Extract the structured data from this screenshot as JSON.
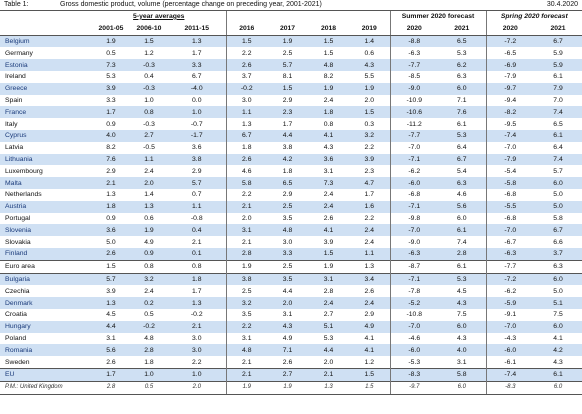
{
  "header": {
    "table_label": "Table 1:",
    "title": "Gross domestic product, volume (percentage change on preceding year, 2001-2021)",
    "date": "30.4.2020"
  },
  "table": {
    "group_headers": [
      "5-year averages",
      "Summer 2020 forecast",
      "Spring 2020 forecast"
    ],
    "columns": [
      "2001-05",
      "2006-10",
      "2011-15",
      "2016",
      "2017",
      "2018",
      "2019",
      "2020",
      "2021",
      "2020",
      "2021"
    ],
    "rows": [
      [
        "Belgium",
        "1.9",
        "1.5",
        "1.3",
        "1.5",
        "1.9",
        "1.5",
        "1.4",
        "-8.8",
        "6.5",
        "-7.2",
        "6.7"
      ],
      [
        "Germany",
        "0.5",
        "1.2",
        "1.7",
        "2.2",
        "2.5",
        "1.5",
        "0.6",
        "-6.3",
        "5.3",
        "-6.5",
        "5.9"
      ],
      [
        "Estonia",
        "7.3",
        "-0.3",
        "3.3",
        "2.6",
        "5.7",
        "4.8",
        "4.3",
        "-7.7",
        "6.2",
        "-6.9",
        "5.9"
      ],
      [
        "Ireland",
        "5.3",
        "0.4",
        "6.7",
        "3.7",
        "8.1",
        "8.2",
        "5.5",
        "-8.5",
        "6.3",
        "-7.9",
        "6.1"
      ],
      [
        "Greece",
        "3.9",
        "-0.3",
        "-4.0",
        "-0.2",
        "1.5",
        "1.9",
        "1.9",
        "-9.0",
        "6.0",
        "-9.7",
        "7.9"
      ],
      [
        "Spain",
        "3.3",
        "1.0",
        "0.0",
        "3.0",
        "2.9",
        "2.4",
        "2.0",
        "-10.9",
        "7.1",
        "-9.4",
        "7.0"
      ],
      [
        "France",
        "1.7",
        "0.8",
        "1.0",
        "1.1",
        "2.3",
        "1.8",
        "1.5",
        "-10.6",
        "7.6",
        "-8.2",
        "7.4"
      ],
      [
        "Italy",
        "0.9",
        "-0.3",
        "-0.7",
        "1.3",
        "1.7",
        "0.8",
        "0.3",
        "-11.2",
        "6.1",
        "-9.5",
        "6.5"
      ],
      [
        "Cyprus",
        "4.0",
        "2.7",
        "-1.7",
        "6.7",
        "4.4",
        "4.1",
        "3.2",
        "-7.7",
        "5.3",
        "-7.4",
        "6.1"
      ],
      [
        "Latvia",
        "8.2",
        "-0.5",
        "3.6",
        "1.8",
        "3.8",
        "4.3",
        "2.2",
        "-7.0",
        "6.4",
        "-7.0",
        "6.4"
      ],
      [
        "Lithuania",
        "7.6",
        "1.1",
        "3.8",
        "2.6",
        "4.2",
        "3.6",
        "3.9",
        "-7.1",
        "6.7",
        "-7.9",
        "7.4"
      ],
      [
        "Luxembourg",
        "2.9",
        "2.4",
        "2.9",
        "4.6",
        "1.8",
        "3.1",
        "2.3",
        "-6.2",
        "5.4",
        "-5.4",
        "5.7"
      ],
      [
        "Malta",
        "2.1",
        "2.0",
        "5.7",
        "5.8",
        "6.5",
        "7.3",
        "4.7",
        "-6.0",
        "6.3",
        "-5.8",
        "6.0"
      ],
      [
        "Netherlands",
        "1.3",
        "1.4",
        "0.7",
        "2.2",
        "2.9",
        "2.4",
        "1.7",
        "-6.8",
        "4.6",
        "-6.8",
        "5.0"
      ],
      [
        "Austria",
        "1.8",
        "1.3",
        "1.1",
        "2.1",
        "2.5",
        "2.4",
        "1.6",
        "-7.1",
        "5.6",
        "-5.5",
        "5.0"
      ],
      [
        "Portugal",
        "0.9",
        "0.6",
        "-0.8",
        "2.0",
        "3.5",
        "2.6",
        "2.2",
        "-9.8",
        "6.0",
        "-6.8",
        "5.8"
      ],
      [
        "Slovenia",
        "3.6",
        "1.9",
        "0.4",
        "3.1",
        "4.8",
        "4.1",
        "2.4",
        "-7.0",
        "6.1",
        "-7.0",
        "6.7"
      ],
      [
        "Slovakia",
        "5.0",
        "4.9",
        "2.1",
        "2.1",
        "3.0",
        "3.9",
        "2.4",
        "-9.0",
        "7.4",
        "-6.7",
        "6.6"
      ],
      [
        "Finland",
        "2.6",
        "0.9",
        "0.1",
        "2.8",
        "3.3",
        "1.5",
        "1.1",
        "-6.3",
        "2.8",
        "-6.3",
        "3.7"
      ],
      [
        "Euro area",
        "1.5",
        "0.8",
        "0.8",
        "1.9",
        "2.5",
        "1.9",
        "1.3",
        "-8.7",
        "6.1",
        "-7.7",
        "6.3"
      ],
      [
        "Bulgaria",
        "5.7",
        "3.2",
        "1.8",
        "3.8",
        "3.5",
        "3.1",
        "3.4",
        "-7.1",
        "5.3",
        "-7.2",
        "6.0"
      ],
      [
        "Czechia",
        "3.9",
        "2.4",
        "1.7",
        "2.5",
        "4.4",
        "2.8",
        "2.6",
        "-7.8",
        "4.5",
        "-6.2",
        "5.0"
      ],
      [
        "Denmark",
        "1.3",
        "0.2",
        "1.3",
        "3.2",
        "2.0",
        "2.4",
        "2.4",
        "-5.2",
        "4.3",
        "-5.9",
        "5.1"
      ],
      [
        "Croatia",
        "4.5",
        "0.5",
        "-0.2",
        "3.5",
        "3.1",
        "2.7",
        "2.9",
        "-10.8",
        "7.5",
        "-9.1",
        "7.5"
      ],
      [
        "Hungary",
        "4.4",
        "-0.2",
        "2.1",
        "2.2",
        "4.3",
        "5.1",
        "4.9",
        "-7.0",
        "6.0",
        "-7.0",
        "6.0"
      ],
      [
        "Poland",
        "3.1",
        "4.8",
        "3.0",
        "3.1",
        "4.9",
        "5.3",
        "4.1",
        "-4.6",
        "4.3",
        "-4.3",
        "4.1"
      ],
      [
        "Romania",
        "5.6",
        "2.8",
        "3.0",
        "4.8",
        "7.1",
        "4.4",
        "4.1",
        "-6.0",
        "4.0",
        "-6.0",
        "4.2"
      ],
      [
        "Sweden",
        "2.6",
        "1.8",
        "2.2",
        "2.1",
        "2.6",
        "2.0",
        "1.2",
        "-5.3",
        "3.1",
        "-6.1",
        "4.3"
      ],
      [
        "EU",
        "1.7",
        "1.0",
        "1.0",
        "2.1",
        "2.7",
        "2.1",
        "1.5",
        "-8.3",
        "5.8",
        "-7.4",
        "6.1"
      ],
      [
        "P.M.: United Kingdom",
        "2.8",
        "0.5",
        "2.0",
        "1.9",
        "1.9",
        "1.3",
        "1.5",
        "-9.7",
        "6.0",
        "-8.3",
        "6.0"
      ]
    ]
  }
}
